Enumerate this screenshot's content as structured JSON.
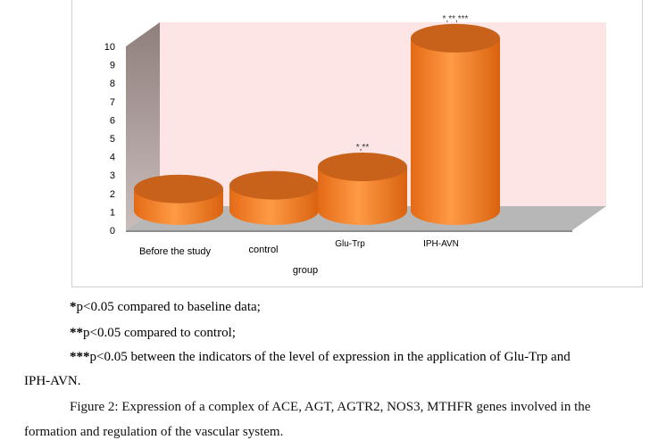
{
  "chart_data": {
    "type": "bar",
    "categories": [
      "Before the study",
      "control",
      "Glu-Trp",
      "IPH-AVN"
    ],
    "values": [
      1.3,
      1.5,
      2.5,
      9.5
    ],
    "significance_labels": [
      "",
      "",
      "*,**",
      "*,**,***"
    ],
    "xlabel": "group",
    "ylabel": "",
    "ylim": [
      0,
      10
    ],
    "y_ticks": [
      "0",
      "1",
      "2",
      "3",
      "4",
      "5",
      "6",
      "7",
      "8",
      "9",
      "10"
    ],
    "grid": false,
    "bar_color": "#f07f2a",
    "bar_top_color": "#c8611a",
    "back_wall_color": "#fde5e5",
    "side_wall_color": "#a39592"
  },
  "notes": [
    {
      "stars": "*",
      "text": "p<0.05 compared to baseline data;"
    },
    {
      "stars": "**",
      "text": "p<0.05 compared to control;"
    },
    {
      "stars": "***",
      "text": "p<0.05 between the indicators of the level of expression in the application of Glu-Trp   and"
    },
    {
      "stars": "",
      "text": "IPH-AVN."
    }
  ],
  "caption": {
    "line1": "Figure 2: Expression of a complex of ACE, AGT, AGTR2, NOS3, MTHFR genes involved in the",
    "line2": "formation and regulation of the vascular system."
  }
}
